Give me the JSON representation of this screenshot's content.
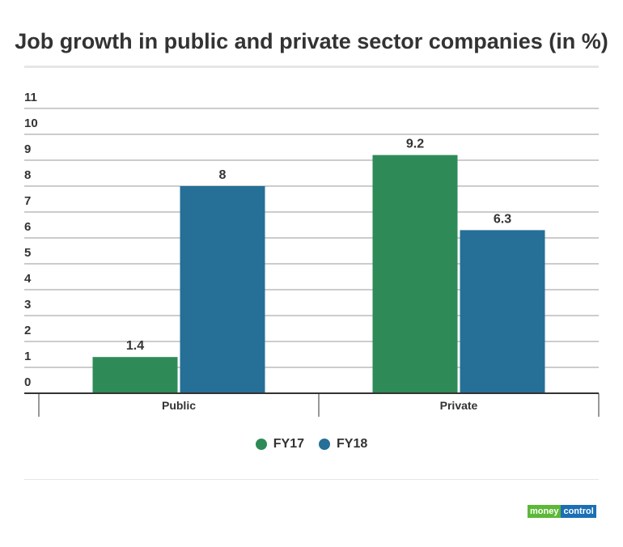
{
  "chart_data": {
    "type": "bar",
    "title": "Job growth in public and private sector companies (in %)",
    "categories": [
      "Public",
      "Private"
    ],
    "series": [
      {
        "name": "FY17",
        "values": [
          1.4,
          9.2
        ],
        "color": "#2e8b57"
      },
      {
        "name": "FY18",
        "values": [
          8,
          6.3
        ],
        "color": "#266f96"
      }
    ],
    "ylim": [
      0,
      11
    ],
    "yticks": [
      0,
      1,
      2,
      3,
      4,
      5,
      6,
      7,
      8,
      9,
      10,
      11
    ],
    "grid": true,
    "legend": "bottom"
  },
  "logo": {
    "part1": "money",
    "part2": "control",
    "color1": "#5cb836",
    "color2": "#1a6fb5"
  }
}
